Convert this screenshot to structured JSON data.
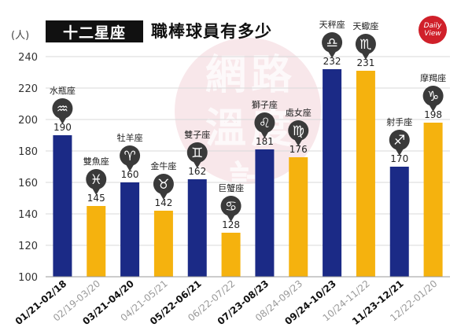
{
  "header": {
    "tag": "十二星座",
    "title": "職棒球員有多少",
    "unit": "(人)",
    "logo_line1": "Daily",
    "logo_line2": "View",
    "watermark": "網路溫度計"
  },
  "colors": {
    "navy": "#1b2a86",
    "gold": "#f5b20e",
    "marker": "#3a3a3a",
    "grid": "#d9d9d9"
  },
  "chart_data": {
    "type": "bar",
    "ylim": [
      100,
      240
    ],
    "yticks": [
      100,
      120,
      140,
      160,
      180,
      200,
      220,
      240
    ],
    "categories": [
      "01/21-02/18",
      "02/19-03/20",
      "03/21-04/20",
      "04/21-05/21",
      "05/22-06/21",
      "06/22-07/22",
      "07/23-08/23",
      "08/24-09/23",
      "09/24-10/23",
      "10/24-11/22",
      "11/23-12/21",
      "12/22-01/20"
    ],
    "signs": [
      "水瓶座",
      "雙魚座",
      "牡羊座",
      "金牛座",
      "雙子座",
      "巨蟹座",
      "獅子座",
      "處女座",
      "天秤座",
      "天蠍座",
      "射手座",
      "摩羯座"
    ],
    "symbols": [
      "♒",
      "♓",
      "♈",
      "♉",
      "♊",
      "♋",
      "♌",
      "♍",
      "♎",
      "♏",
      "♐",
      "♑"
    ],
    "values": [
      190,
      145,
      160,
      142,
      162,
      128,
      181,
      176,
      232,
      231,
      170,
      198
    ],
    "bar_colors": [
      "navy",
      "gold",
      "navy",
      "gold",
      "navy",
      "gold",
      "navy",
      "gold",
      "navy",
      "gold",
      "navy",
      "gold"
    ]
  }
}
